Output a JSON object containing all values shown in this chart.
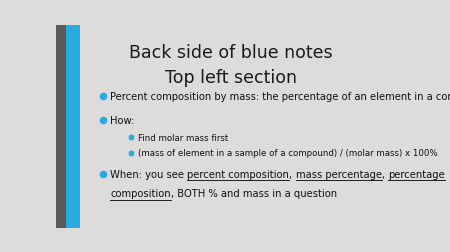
{
  "title_line1": "Back side of blue notes",
  "title_line2": "Top left section",
  "bg_color": "#dcdcdc",
  "title_color": "#1a1a1a",
  "title_fontsize": 12.5,
  "text_color": "#111111",
  "bullet_color": "#29abe2",
  "body_fontsize": 7.2,
  "sub_fontsize": 6.2,
  "bullet1": "Percent composition by mass: the percentage of an element in a compound",
  "bullet2": "How:",
  "sub1": "Find molar mass first",
  "sub2": "(mass of element in a sample of a compound) / (molar mass) x 100%",
  "when_prefix": "When: you see ",
  "when_u1": "percent composition",
  "when_sep1": ", ",
  "when_u2": "mass percentage",
  "when_sep2": ", ",
  "when_u3": "percentage",
  "when_line2_u": "composition",
  "when_suffix": ", BOTH % and mass in a question",
  "dark_bar_color": "#5a5a5a",
  "blue_bar_color": "#29abe2"
}
